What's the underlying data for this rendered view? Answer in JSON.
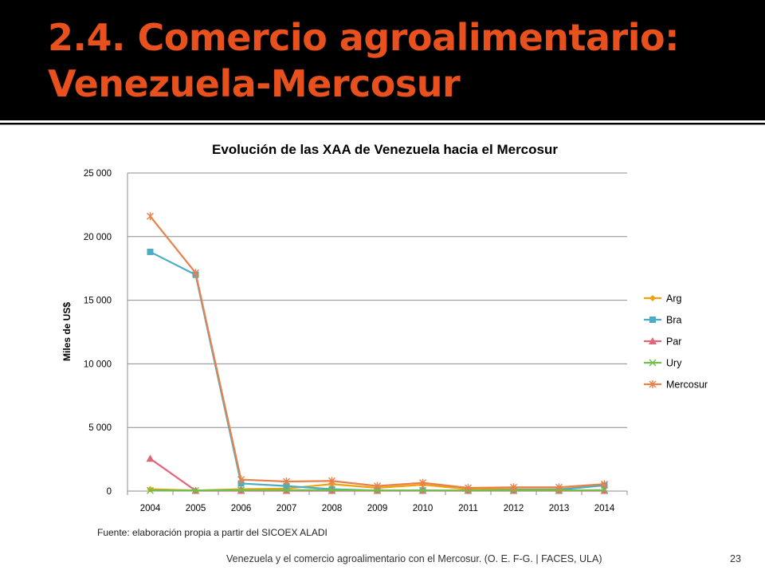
{
  "slide": {
    "title_line1": "2.4. Comercio agroalimentario:",
    "title_line2": "Venezuela-Mercosur",
    "source": "Fuente: elaboración propia a partir del SICOEX ALADI",
    "footer": "Venezuela y el comercio agroalimentario con el Mercosur. (O. E. F-G. | FACES, ULA)",
    "page_number": "23"
  },
  "colors": {
    "title": "#e8501e",
    "Arg": "#f0a30a",
    "Bra": "#4bacc6",
    "Par": "#e0677a",
    "Ury": "#6fbf4a",
    "Mercosur": "#e8814a"
  },
  "chart_data": {
    "type": "line",
    "title": "Evolución de las XAA de Venezuela hacia el Mercosur",
    "ylabel": "Miles de US$",
    "xlabel": "",
    "x": [
      "2004",
      "2005",
      "2006",
      "2007",
      "2008",
      "2009",
      "2010",
      "2011",
      "2012",
      "2013",
      "2014"
    ],
    "ylim": [
      0,
      25000
    ],
    "yticks": [
      0,
      5000,
      10000,
      15000,
      20000,
      25000
    ],
    "ytick_labels": [
      "0",
      "5 000",
      "10 000",
      "15 000",
      "20 000",
      "25 000"
    ],
    "grid": true,
    "legend_position": "right",
    "series": [
      {
        "name": "Arg",
        "marker": "diamond",
        "values": [
          150,
          50,
          150,
          200,
          550,
          250,
          500,
          150,
          150,
          150,
          450
        ]
      },
      {
        "name": "Bra",
        "marker": "square",
        "values": [
          18800,
          17000,
          600,
          400,
          150,
          50,
          50,
          30,
          100,
          100,
          450
        ]
      },
      {
        "name": "Par",
        "marker": "triangle",
        "values": [
          2550,
          30,
          30,
          30,
          30,
          30,
          30,
          30,
          30,
          30,
          30
        ]
      },
      {
        "name": "Ury",
        "marker": "x",
        "values": [
          50,
          50,
          80,
          80,
          80,
          50,
          50,
          50,
          50,
          50,
          80
        ]
      },
      {
        "name": "Mercosur",
        "marker": "star",
        "values": [
          21600,
          17150,
          900,
          750,
          800,
          400,
          650,
          250,
          300,
          300,
          550
        ]
      }
    ]
  }
}
